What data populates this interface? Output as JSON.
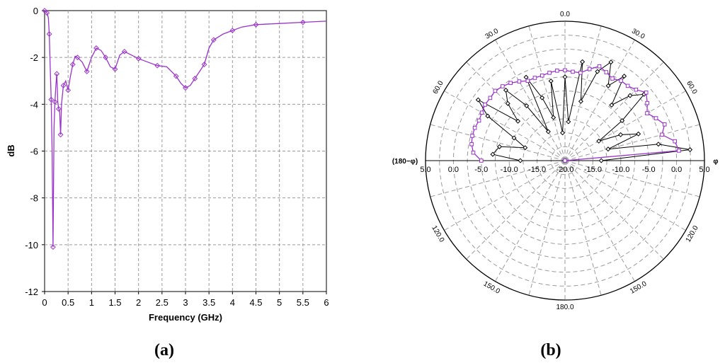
{
  "panels": {
    "a": "(a)",
    "b": "(b)"
  },
  "chart_data": [
    {
      "type": "line",
      "xlabel": "Frequency (GHz)",
      "ylabel": "dB",
      "xlim": [
        0,
        6
      ],
      "ylim": [
        -12,
        0
      ],
      "grid": true,
      "x_ticks": [
        "0",
        "0.5",
        "1",
        "1.5",
        "2",
        "2.5",
        "3",
        "3.5",
        "4",
        "4.5",
        "5",
        "5.5",
        "6"
      ],
      "y_ticks": [
        "0",
        "-2",
        "-4",
        "-6",
        "-8",
        "-10",
        "-12"
      ],
      "series": [
        {
          "color": "#9933cc",
          "x": [
            0.0,
            0.02,
            0.05,
            0.08,
            0.1,
            0.12,
            0.14,
            0.16,
            0.18,
            0.2,
            0.22,
            0.24,
            0.26,
            0.28,
            0.3,
            0.32,
            0.34,
            0.36,
            0.4,
            0.45,
            0.5,
            0.55,
            0.6,
            0.65,
            0.7,
            0.8,
            0.9,
            1.0,
            1.1,
            1.2,
            1.3,
            1.4,
            1.5,
            1.6,
            1.7,
            1.8,
            2.0,
            2.2,
            2.4,
            2.6,
            2.8,
            2.9,
            3.0,
            3.1,
            3.2,
            3.3,
            3.4,
            3.5,
            3.6,
            3.8,
            4.0,
            4.2,
            4.5,
            5.0,
            5.5,
            6.0
          ],
          "y": [
            0.0,
            0.0,
            -0.1,
            -0.3,
            -1.0,
            -2.5,
            -3.8,
            -6.0,
            -10.1,
            -5.0,
            -3.9,
            -3.2,
            -2.7,
            -3.9,
            -4.2,
            -4.3,
            -5.3,
            -4.0,
            -3.2,
            -3.0,
            -3.4,
            -2.8,
            -2.3,
            -1.95,
            -2.0,
            -2.2,
            -2.6,
            -2.0,
            -1.6,
            -1.7,
            -2.0,
            -2.4,
            -2.5,
            -1.9,
            -1.75,
            -1.85,
            -2.05,
            -2.2,
            -2.35,
            -2.4,
            -2.8,
            -3.1,
            -3.3,
            -3.2,
            -2.9,
            -2.6,
            -2.3,
            -1.6,
            -1.25,
            -1.0,
            -0.85,
            -0.7,
            -0.6,
            -0.55,
            -0.5,
            -0.45
          ]
        }
      ]
    },
    {
      "type": "polar",
      "radial_ticks": [
        "5.0",
        "0.0",
        "-5.0",
        "-10.0",
        "-15.0",
        "-20.0"
      ],
      "r_range": [
        -20,
        5
      ],
      "angle_labels_top": [
        "0.0",
        "30.0",
        "30.0",
        "60.0",
        "60.0"
      ],
      "angle_labels_bottom": [
        "120.0",
        "120.0",
        "150.0",
        "150.0",
        "180.0"
      ],
      "left_label": "(180−φ)",
      "right_label": "φ",
      "series": [
        {
          "color": "#000000",
          "marker": "diamond",
          "theta": [
            -90,
            -85,
            -78,
            -72,
            -66,
            -60,
            -55,
            -50,
            -45,
            -40,
            -35,
            -30,
            -25,
            -20,
            -15,
            -10,
            -5,
            0,
            5,
            10,
            15,
            20,
            25,
            30,
            35,
            40,
            45,
            50,
            55,
            60,
            65,
            70,
            75,
            80,
            85,
            90
          ],
          "r": [
            -12.0,
            -7.0,
            -8.0,
            -12.5,
            -10.0,
            -4.0,
            -1.0,
            -9.0,
            -5.5,
            -3.5,
            -8.0,
            -14.0,
            -3.5,
            -8.0,
            -12.0,
            -5.5,
            -15.0,
            -5.0,
            -13.0,
            -2.0,
            -9.0,
            -3.0,
            -0.5,
            -4.5,
            -1.5,
            -7.0,
            -3.5,
            -1.5,
            -7.5,
            -13.0,
            -9.0,
            -6.0,
            -12.0,
            -3.0,
            2.5,
            -13.5
          ]
        },
        {
          "color": "#9933cc",
          "marker": "square",
          "theta": [
            -90,
            -85,
            -80,
            -75,
            -70,
            -65,
            -60,
            -55,
            -50,
            -45,
            -40,
            -35,
            -30,
            -25,
            -20,
            -15,
            -10,
            -5,
            0,
            5,
            10,
            15,
            20,
            25,
            30,
            35,
            40,
            45,
            50,
            55,
            60,
            65,
            70,
            75,
            80,
            85,
            90
          ],
          "r": [
            -5.0,
            -3.5,
            -3.0,
            -2.8,
            -2.8,
            -3.0,
            -2.8,
            -2.5,
            -2.5,
            -2.3,
            -2.6,
            -3.0,
            -3.6,
            -4.2,
            -4.2,
            -4.2,
            -4.0,
            -3.8,
            -3.8,
            -4.0,
            -4.0,
            -3.0,
            -2.0,
            -2.5,
            -3.0,
            -2.5,
            -2.5,
            -2.0,
            -1.0,
            -2.0,
            -3.0,
            -2.0,
            -1.0,
            -2.0,
            0.0,
            0.5,
            -20.0
          ]
        }
      ]
    }
  ]
}
